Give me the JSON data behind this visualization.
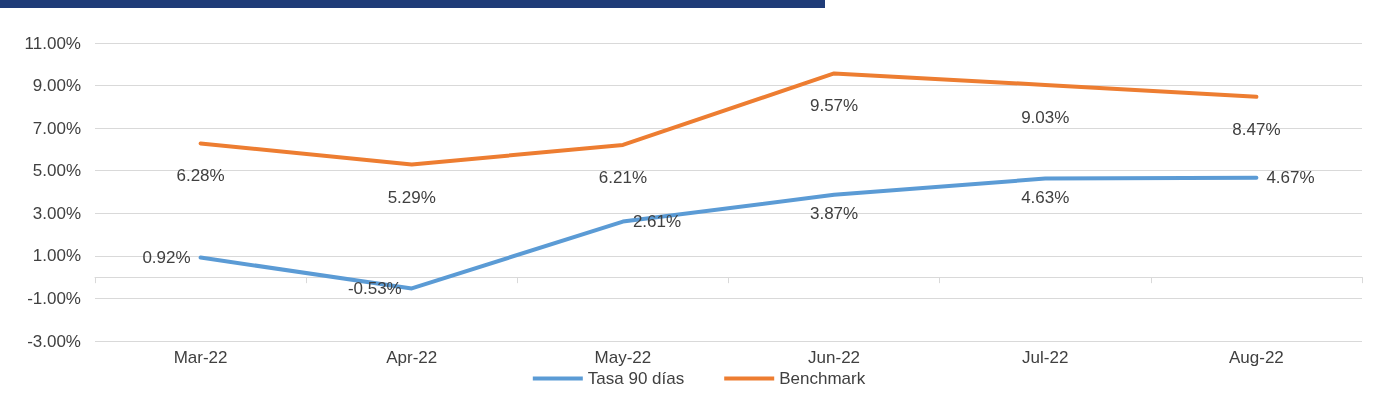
{
  "chart_data": {
    "type": "line",
    "categories": [
      "Mar-22",
      "Apr-22",
      "May-22",
      "Jun-22",
      "Jul-22",
      "Aug-22"
    ],
    "series": [
      {
        "name": "Tasa 90 días",
        "color": "#5b9bd5",
        "values": [
          0.92,
          -0.53,
          2.61,
          3.87,
          4.63,
          4.67
        ],
        "value_labels": [
          "0.92%",
          "-0.53%",
          "2.61%",
          "3.87%",
          "4.63%",
          "4.67%"
        ]
      },
      {
        "name": "Benchmark",
        "color": "#ed7d31",
        "values": [
          6.28,
          5.29,
          6.21,
          9.57,
          9.03,
          8.47
        ],
        "value_labels": [
          "6.28%",
          "5.29%",
          "6.21%",
          "9.57%",
          "9.03%",
          "8.47%"
        ]
      }
    ],
    "ylim": [
      -3,
      11
    ],
    "yticks": [
      {
        "value": -3,
        "label": "-3.00%"
      },
      {
        "value": -1,
        "label": "-1.00%"
      },
      {
        "value": 1,
        "label": "1.00%"
      },
      {
        "value": 3,
        "label": "3.00%"
      },
      {
        "value": 5,
        "label": "5.00%"
      },
      {
        "value": 7,
        "label": "7.00%"
      },
      {
        "value": 9,
        "label": "9.00%"
      },
      {
        "value": 11,
        "label": "11.00%"
      }
    ],
    "grid": "y",
    "legend": "bottom",
    "marker": "none",
    "line_style": "solid"
  }
}
